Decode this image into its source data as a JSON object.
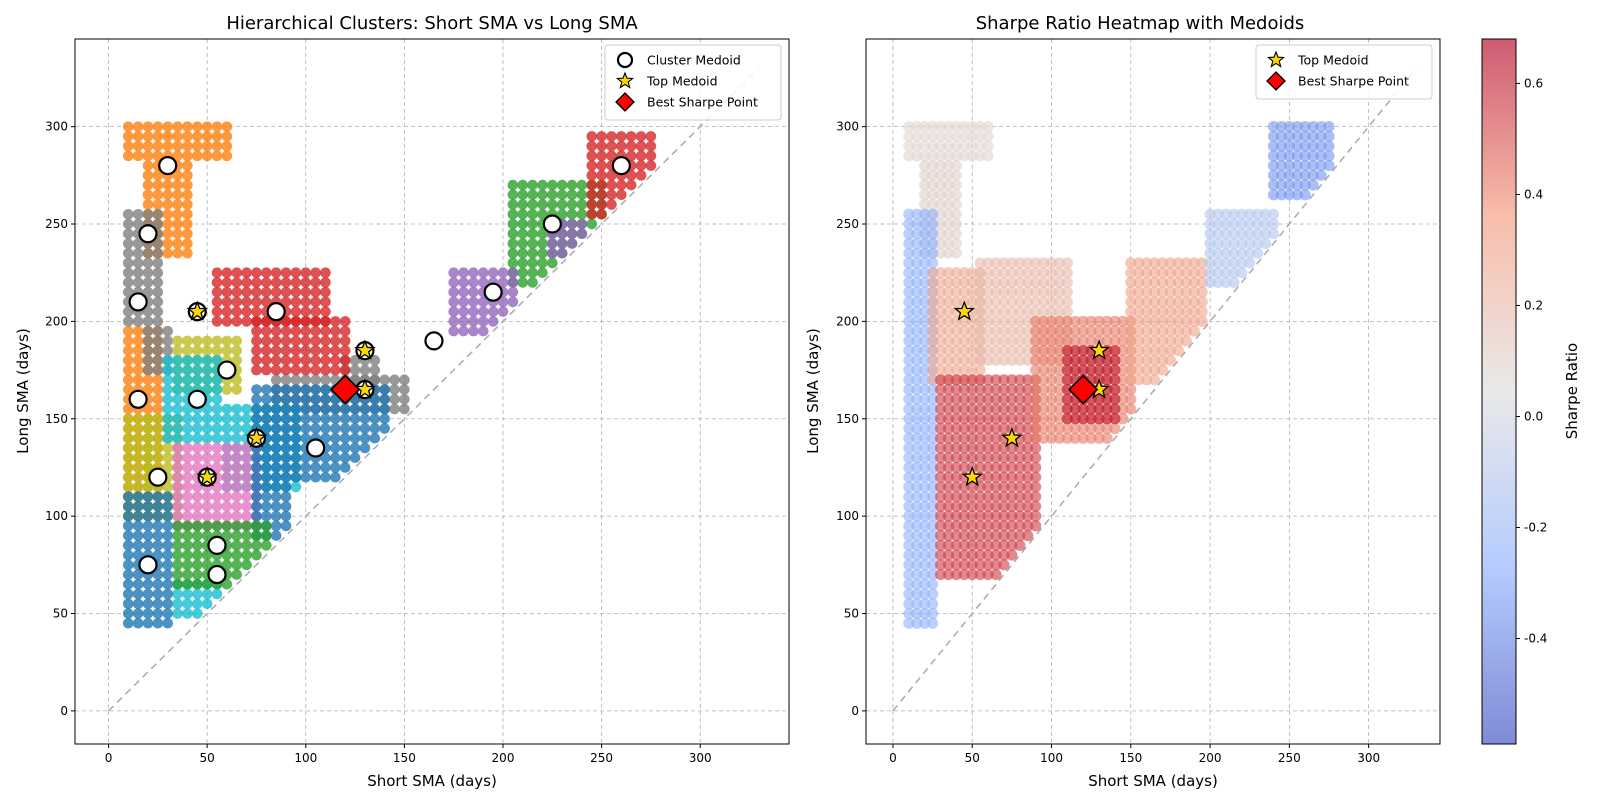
{
  "chart_data": [
    {
      "type": "scatter",
      "title": "Hierarchical Clusters: Short SMA vs Long SMA",
      "xlabel": "Short SMA (days)",
      "ylabel": "Long SMA (days)",
      "xlim": [
        -17,
        345
      ],
      "ylim": [
        -17,
        345
      ],
      "xticks": [
        0,
        50,
        100,
        150,
        200,
        250,
        300
      ],
      "yticks": [
        0,
        50,
        100,
        150,
        200,
        250,
        300
      ],
      "grid": true,
      "legend_position": "top-right",
      "legend": [
        {
          "label": "Cluster Medoid",
          "marker": "circle-open"
        },
        {
          "label": "Top Medoid",
          "marker": "star"
        },
        {
          "label": "Best Sharpe Point",
          "marker": "diamond"
        }
      ],
      "reference_line": {
        "from": [
          0,
          0
        ],
        "to": [
          330,
          330
        ],
        "style": "dashed",
        "color": "#aaaaaa"
      },
      "series": [
        {
          "color": "#ff7f0e",
          "regions": [
            {
              "x": [
                10,
                60
              ],
              "y": [
                285,
                300
              ],
              "step": 5
            },
            {
              "x": [
                20,
                40
              ],
              "y": [
                235,
                280
              ],
              "step": 5
            },
            {
              "x": [
                10,
                25
              ],
              "y": [
                100,
                195
              ],
              "step": 5
            }
          ]
        },
        {
          "color": "#7f7f7f",
          "regions": [
            {
              "x": [
                10,
                25
              ],
              "y": [
                200,
                255
              ],
              "step": 5
            },
            {
              "x": [
                20,
                30
              ],
              "y": [
                175,
                195
              ],
              "step": 5
            },
            {
              "x": [
                85,
                150
              ],
              "y": [
                155,
                170
              ],
              "step": 5
            },
            {
              "x": [
                120,
                135
              ],
              "y": [
                170,
                180
              ],
              "step": 5
            }
          ]
        },
        {
          "color": "#bcbd22",
          "regions": [
            {
              "x": [
                10,
                20
              ],
              "y": [
                100,
                150
              ],
              "step": 5
            },
            {
              "x": [
                35,
                65
              ],
              "y": [
                165,
                190
              ],
              "step": 5
            },
            {
              "x": [
                20,
                35
              ],
              "y": [
                100,
                150
              ],
              "step": 5
            }
          ]
        },
        {
          "color": "#17becf",
          "regions": [
            {
              "x": [
                30,
                55
              ],
              "y": [
                140,
                180
              ],
              "step": 5
            },
            {
              "x": [
                60,
                95
              ],
              "y": [
                115,
                155
              ],
              "step": 5
            },
            {
              "x": [
                35,
                55
              ],
              "y": [
                50,
                65
              ],
              "step": 5
            }
          ]
        },
        {
          "color": "#e377c2",
          "regions": [
            {
              "x": [
                35,
                75
              ],
              "y": [
                95,
                135
              ],
              "step": 5
            }
          ]
        },
        {
          "color": "#1f77b4",
          "regions": [
            {
              "x": [
                10,
                30
              ],
              "y": [
                45,
                110
              ],
              "step": 5
            },
            {
              "x": [
                75,
                140
              ],
              "y": [
                120,
                165
              ],
              "step": 5
            },
            {
              "x": [
                75,
                90
              ],
              "y": [
                90,
                115
              ],
              "step": 5
            }
          ]
        },
        {
          "color": "#2ca02c",
          "regions": [
            {
              "x": [
                35,
                80
              ],
              "y": [
                65,
                95
              ],
              "step": 5
            },
            {
              "x": [
                205,
                250
              ],
              "y": [
                220,
                270
              ],
              "step": 5
            }
          ]
        },
        {
          "color": "#d62728",
          "regions": [
            {
              "x": [
                55,
                110
              ],
              "y": [
                200,
                225
              ],
              "step": 5
            },
            {
              "x": [
                75,
                120
              ],
              "y": [
                175,
                200
              ],
              "step": 5
            },
            {
              "x": [
                245,
                275
              ],
              "y": [
                255,
                295
              ],
              "step": 5
            }
          ]
        },
        {
          "color": "#9467bd",
          "regions": [
            {
              "x": [
                175,
                205
              ],
              "y": [
                195,
                225
              ],
              "step": 5
            },
            {
              "x": [
                225,
                240
              ],
              "y": [
                235,
                250
              ],
              "step": 5
            }
          ]
        }
      ],
      "medoids": [
        {
          "x": 30,
          "y": 280
        },
        {
          "x": 20,
          "y": 245
        },
        {
          "x": 15,
          "y": 210
        },
        {
          "x": 45,
          "y": 205
        },
        {
          "x": 85,
          "y": 205
        },
        {
          "x": 60,
          "y": 175
        },
        {
          "x": 15,
          "y": 160
        },
        {
          "x": 45,
          "y": 160
        },
        {
          "x": 75,
          "y": 140
        },
        {
          "x": 25,
          "y": 120
        },
        {
          "x": 50,
          "y": 120
        },
        {
          "x": 55,
          "y": 85
        },
        {
          "x": 20,
          "y": 75
        },
        {
          "x": 55,
          "y": 70
        },
        {
          "x": 105,
          "y": 135
        },
        {
          "x": 130,
          "y": 185
        },
        {
          "x": 130,
          "y": 165
        },
        {
          "x": 165,
          "y": 190
        },
        {
          "x": 195,
          "y": 215
        },
        {
          "x": 225,
          "y": 250
        },
        {
          "x": 260,
          "y": 280
        }
      ],
      "top_medoids": [
        {
          "x": 45,
          "y": 205
        },
        {
          "x": 75,
          "y": 140
        },
        {
          "x": 50,
          "y": 120
        },
        {
          "x": 130,
          "y": 185
        },
        {
          "x": 130,
          "y": 165
        }
      ],
      "best_point": {
        "x": 120,
        "y": 165
      }
    },
    {
      "type": "heatmap",
      "title": "Sharpe Ratio Heatmap with Medoids",
      "xlabel": "Short SMA (days)",
      "ylabel": "Long SMA (days)",
      "xlim": [
        -17,
        345
      ],
      "ylim": [
        -17,
        345
      ],
      "xticks": [
        0,
        50,
        100,
        150,
        200,
        250,
        300
      ],
      "yticks": [
        0,
        50,
        100,
        150,
        200,
        250,
        300
      ],
      "grid": true,
      "legend_position": "top-right",
      "legend": [
        {
          "label": "Top Medoid",
          "marker": "star"
        },
        {
          "label": "Best Sharpe Point",
          "marker": "diamond"
        }
      ],
      "colormap": "coolwarm",
      "colorbar": {
        "label": "Sharpe Ratio",
        "range": [
          -0.59,
          0.68
        ],
        "ticks": [
          -0.4,
          -0.2,
          0.0,
          0.2,
          0.4,
          0.6
        ]
      },
      "regions": [
        {
          "x": [
            10,
            60
          ],
          "y": [
            285,
            300
          ],
          "step": 5,
          "value": 0.08
        },
        {
          "x": [
            20,
            40
          ],
          "y": [
            235,
            280
          ],
          "step": 5,
          "value": 0.1
        },
        {
          "x": [
            10,
            25
          ],
          "y": [
            45,
            255
          ],
          "step": 5,
          "value": -0.25
        },
        {
          "x": [
            25,
            55
          ],
          "y": [
            170,
            225
          ],
          "step": 5,
          "value": 0.28
        },
        {
          "x": [
            55,
            110
          ],
          "y": [
            180,
            230
          ],
          "step": 5,
          "value": 0.2
        },
        {
          "x": [
            30,
            90
          ],
          "y": [
            70,
            170
          ],
          "step": 5,
          "value": 0.55
        },
        {
          "x": [
            90,
            150
          ],
          "y": [
            140,
            200
          ],
          "step": 5,
          "value": 0.42
        },
        {
          "x": [
            110,
            140
          ],
          "y": [
            150,
            185
          ],
          "step": 5,
          "value": 0.62
        },
        {
          "x": [
            150,
            195
          ],
          "y": [
            170,
            230
          ],
          "step": 5,
          "value": 0.3
        },
        {
          "x": [
            200,
            240
          ],
          "y": [
            220,
            255
          ],
          "step": 5,
          "value": -0.12
        },
        {
          "x": [
            240,
            275
          ],
          "y": [
            265,
            300
          ],
          "step": 5,
          "value": -0.35
        }
      ],
      "top_medoids": [
        {
          "x": 45,
          "y": 205
        },
        {
          "x": 75,
          "y": 140
        },
        {
          "x": 50,
          "y": 120
        },
        {
          "x": 130,
          "y": 185
        },
        {
          "x": 130,
          "y": 165
        }
      ],
      "best_point": {
        "x": 120,
        "y": 165
      }
    }
  ]
}
